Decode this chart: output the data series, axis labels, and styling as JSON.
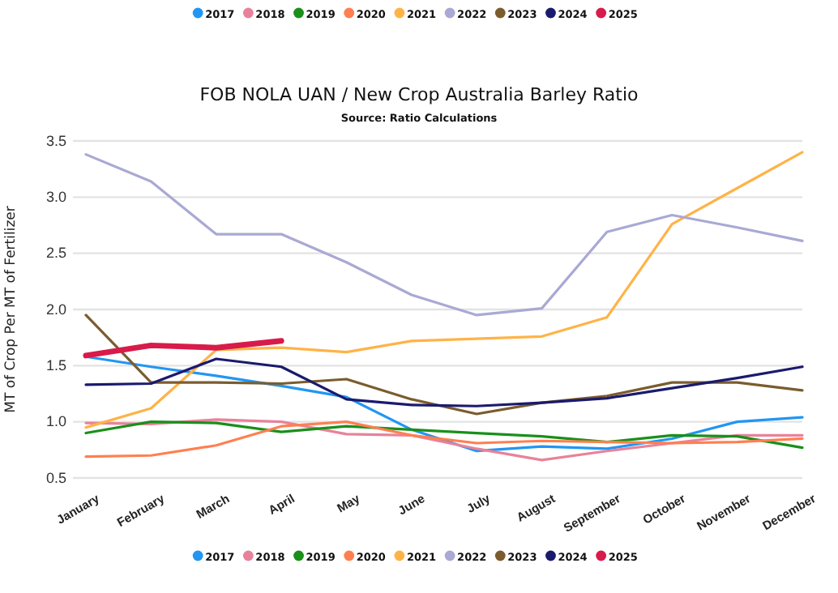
{
  "chart_data": {
    "type": "line",
    "title": "FOB NOLA UAN / New Crop Australia Barley Ratio",
    "subtitle": "Source: Ratio Calculations",
    "ylabel": "MT of Crop Per MT of Fertilizer",
    "categories": [
      "January",
      "February",
      "March",
      "April",
      "May",
      "June",
      "July",
      "August",
      "September",
      "October",
      "November",
      "December"
    ],
    "series": [
      {
        "name": "2017",
        "color": "#2196f3",
        "values": [
          1.58,
          1.49,
          1.41,
          1.32,
          1.22,
          0.93,
          0.74,
          0.78,
          0.76,
          0.85,
          1.0,
          1.04
        ]
      },
      {
        "name": "2018",
        "color": "#e8829a",
        "values": [
          0.99,
          0.98,
          1.02,
          1.0,
          0.89,
          0.88,
          0.76,
          0.66,
          0.74,
          0.81,
          0.88,
          0.88
        ]
      },
      {
        "name": "2019",
        "color": "#1a8f1a",
        "values": [
          0.9,
          1.0,
          0.99,
          0.91,
          0.96,
          0.93,
          0.9,
          0.87,
          0.82,
          0.88,
          0.87,
          0.77
        ]
      },
      {
        "name": "2020",
        "color": "#ff7f50",
        "values": [
          0.69,
          0.7,
          0.79,
          0.96,
          1.0,
          0.88,
          0.81,
          0.83,
          0.82,
          0.81,
          0.82,
          0.85
        ]
      },
      {
        "name": "2021",
        "color": "#ffb347",
        "values": [
          0.95,
          1.12,
          1.64,
          1.66,
          1.62,
          1.72,
          1.74,
          1.76,
          1.93,
          2.76,
          3.08,
          3.4
        ]
      },
      {
        "name": "2022",
        "color": "#a9a9d4",
        "values": [
          3.38,
          3.14,
          2.67,
          2.67,
          2.42,
          2.13,
          1.95,
          2.01,
          2.69,
          2.84,
          2.73,
          2.61
        ]
      },
      {
        "name": "2023",
        "color": "#7b5c2e",
        "values": [
          1.95,
          1.35,
          1.35,
          1.34,
          1.38,
          1.2,
          1.07,
          1.17,
          1.23,
          1.35,
          1.35,
          1.28
        ]
      },
      {
        "name": "2024",
        "color": "#1a1a6e",
        "values": [
          1.33,
          1.34,
          1.56,
          1.49,
          1.2,
          1.15,
          1.14,
          1.17,
          1.21,
          1.3,
          1.39,
          1.49
        ]
      },
      {
        "name": "2025",
        "color": "#d81b4a",
        "values": [
          1.59,
          1.68,
          1.66,
          1.72,
          null,
          null,
          null,
          null,
          null,
          null,
          null,
          null
        ]
      }
    ],
    "ylim": [
      0.5,
      3.5
    ],
    "yticks": [
      {
        "value": 0.5,
        "label": "0.5"
      },
      {
        "value": 1,
        "label": "1.0"
      },
      {
        "value": 1.5,
        "label": "1.5"
      },
      {
        "value": 2,
        "label": "2.0"
      },
      {
        "value": 2.5,
        "label": "2.5"
      },
      {
        "value": 3,
        "label": "3.0"
      },
      {
        "value": 3.5,
        "label": "3.5"
      }
    ],
    "grid": "y",
    "legend": "top",
    "marker": "none",
    "line_style": "solid"
  }
}
